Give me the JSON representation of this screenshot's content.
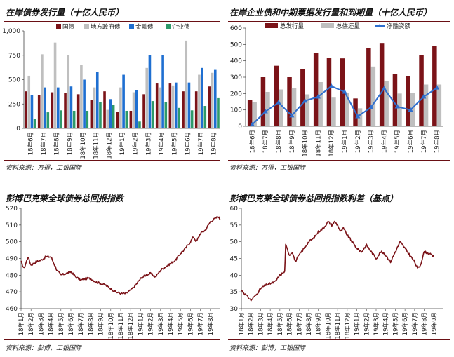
{
  "colors": {
    "dark_red": "#7b1318",
    "gray": "#bfbfbf",
    "blue": "#1f6fd1",
    "green": "#2e9a6a",
    "line_blue": "#2f6fcf",
    "title_rule": "#6a0f14"
  },
  "panels": {
    "tl": {
      "title": "在岸债券发行量（十亿人民币）",
      "source": "资料来源：万得，工银国际"
    },
    "tr": {
      "title": "在岸企业债和中期票据发行量和到期量（十亿人民币）",
      "source": "资料来源：万得，工银国际"
    },
    "bl": {
      "title": "彭博巴克莱全球债券总回报指数",
      "source": "资料来源：彭博，工银国际"
    },
    "br": {
      "title": "彭博巴克莱全球债券总回报指数利差（基点）",
      "source": "资料来源：彭博，工银国际"
    }
  },
  "chart_data": [
    {
      "type": "bar",
      "title": "在岸债券发行量（十亿人民币）",
      "categories": [
        "18年6月",
        "18年7月",
        "18年8月",
        "18年9月",
        "18年10月",
        "18年11月",
        "18年12月",
        "19年1月",
        "19年2月",
        "19年3月",
        "19年4月",
        "19年5月",
        "19年6月",
        "19年7月",
        "19年8月"
      ],
      "series": [
        {
          "name": "国债",
          "color": "#7b1318",
          "values": [
            380,
            340,
            370,
            360,
            350,
            290,
            380,
            170,
            180,
            350,
            460,
            460,
            380,
            380,
            430
          ]
        },
        {
          "name": "地方政府债",
          "color": "#bfbfbf",
          "values": [
            540,
            760,
            880,
            750,
            650,
            420,
            190,
            420,
            370,
            620,
            420,
            440,
            900,
            550,
            570
          ]
        },
        {
          "name": "金融债",
          "color": "#1f6fd1",
          "values": [
            340,
            420,
            420,
            430,
            500,
            580,
            300,
            550,
            390,
            750,
            750,
            470,
            470,
            620,
            600
          ]
        },
        {
          "name": "企业债",
          "color": "#2e9a6a",
          "values": [
            95,
            165,
            185,
            180,
            180,
            270,
            240,
            180,
            70,
            280,
            270,
            210,
            185,
            230,
            310
          ]
        }
      ],
      "ylim": [
        0,
        1000
      ],
      "yticks": [
        "0",
        "250",
        "500",
        "750",
        "1,000"
      ],
      "ytick_values": [
        0,
        250,
        500,
        750,
        1000
      ],
      "xlabel": "",
      "ylabel": "",
      "legend": "top"
    },
    {
      "type": "bar",
      "title": "在岸企业债和中期票据发行量和到期量（十亿人民币）",
      "categories": [
        "18年6月",
        "18年7月",
        "18年8月",
        "18年9月",
        "18年10月",
        "18年11月",
        "18年12月",
        "19年1月",
        "19年2月",
        "19年3月",
        "19年4月",
        "19年5月",
        "19年6月",
        "19年7月",
        "19年8月"
      ],
      "series": [
        {
          "name": "总发行量",
          "kind": "bar",
          "color": "#7b1318",
          "values": [
            160,
            300,
            370,
            300,
            350,
            450,
            420,
            415,
            170,
            480,
            505,
            320,
            305,
            435,
            490
          ]
        },
        {
          "name": "总偿还量",
          "kind": "bar",
          "color": "#bfbfbf",
          "values": [
            150,
            210,
            225,
            235,
            195,
            270,
            175,
            205,
            110,
            365,
            275,
            200,
            205,
            255,
            255
          ]
        },
        {
          "name": "净融资额",
          "kind": "line",
          "color": "#2f6fcf",
          "values": [
            10,
            90,
            145,
            65,
            155,
            180,
            245,
            210,
            60,
            115,
            230,
            120,
            100,
            180,
            235
          ]
        }
      ],
      "ylim": [
        0,
        600
      ],
      "yticks": [
        "0",
        "100",
        "200",
        "300",
        "400",
        "500",
        "600"
      ],
      "ytick_values": [
        0,
        100,
        200,
        300,
        400,
        500,
        600
      ],
      "xlabel": "",
      "ylabel": "",
      "legend": "top"
    },
    {
      "type": "line",
      "title": "彭博巴克莱全球债券总回报指数",
      "x_labels": [
        "18年1月",
        "18年2月",
        "18年3月",
        "18年4月",
        "18年5月",
        "18年6月",
        "18年7月",
        "18年8月",
        "18年9月",
        "18年10月",
        "18年11月",
        "18年12月",
        "19年1月",
        "19年2月",
        "19年3月",
        "19年4月",
        "19年5月",
        "19年6月",
        "19年7月",
        "19年8月"
      ],
      "anchors": [
        [
          0,
          488
        ],
        [
          0.3,
          484
        ],
        [
          0.7,
          491
        ],
        [
          1.0,
          486
        ],
        [
          1.5,
          488
        ],
        [
          2.0,
          489
        ],
        [
          2.5,
          491
        ],
        [
          3.0,
          491
        ],
        [
          3.3,
          487
        ],
        [
          3.6,
          483
        ],
        [
          4.0,
          480
        ],
        [
          4.5,
          481
        ],
        [
          5.0,
          482
        ],
        [
          5.5,
          479
        ],
        [
          6.0,
          477
        ],
        [
          6.5,
          478
        ],
        [
          7.0,
          478
        ],
        [
          7.5,
          476
        ],
        [
          8.0,
          475
        ],
        [
          8.5,
          474
        ],
        [
          9.0,
          472
        ],
        [
          9.5,
          470
        ],
        [
          10.0,
          469
        ],
        [
          10.5,
          469
        ],
        [
          11.0,
          471
        ],
        [
          11.5,
          474
        ],
        [
          12.0,
          478
        ],
        [
          12.5,
          480
        ],
        [
          13.0,
          481
        ],
        [
          13.5,
          479
        ],
        [
          14.0,
          483
        ],
        [
          14.5,
          485
        ],
        [
          15.0,
          487
        ],
        [
          15.5,
          489
        ],
        [
          16.0,
          493
        ],
        [
          16.5,
          496
        ],
        [
          17.0,
          500
        ],
        [
          17.3,
          503
        ],
        [
          17.6,
          500
        ],
        [
          18.0,
          505
        ],
        [
          18.5,
          507
        ],
        [
          19.0,
          512
        ],
        [
          19.5,
          514
        ],
        [
          19.8,
          515
        ],
        [
          20.0,
          513
        ]
      ],
      "ylim": [
        460,
        520
      ],
      "yticks": [
        "460",
        "470",
        "480",
        "490",
        "500",
        "510",
        "520"
      ],
      "ytick_values": [
        460,
        470,
        480,
        490,
        500,
        510,
        520
      ],
      "xlabel": "",
      "ylabel": "",
      "legend": "none"
    },
    {
      "type": "line",
      "title": "彭博巴克莱全球债券总回报指数利差（基点）",
      "x_labels": [
        "18年1月",
        "18年2月",
        "18年3月",
        "18年4月",
        "18年5月",
        "18年6月",
        "18年7月",
        "18年8月",
        "18年9月",
        "18年10月",
        "18年11月",
        "18年12月",
        "19年1月",
        "19年2月",
        "19年3月",
        "19年4月",
        "19年5月",
        "19年6月",
        "19年7月",
        "19年8月",
        "19年9月"
      ],
      "anchors": [
        [
          0,
          35.5
        ],
        [
          0.5,
          34
        ],
        [
          1.0,
          32.5
        ],
        [
          1.5,
          34
        ],
        [
          2.0,
          36
        ],
        [
          2.5,
          37
        ],
        [
          3.0,
          37.5
        ],
        [
          3.5,
          38
        ],
        [
          4.0,
          40
        ],
        [
          4.5,
          41
        ],
        [
          4.6,
          49
        ],
        [
          5.0,
          46
        ],
        [
          5.3,
          47
        ],
        [
          5.6,
          44
        ],
        [
          6.0,
          46
        ],
        [
          6.5,
          48
        ],
        [
          7.0,
          50
        ],
        [
          7.5,
          51
        ],
        [
          8.0,
          53
        ],
        [
          8.5,
          54
        ],
        [
          9.0,
          56
        ],
        [
          9.4,
          55
        ],
        [
          9.7,
          56
        ],
        [
          10.0,
          55
        ],
        [
          10.3,
          53
        ],
        [
          10.6,
          54
        ],
        [
          11.0,
          52
        ],
        [
          11.5,
          50
        ],
        [
          12.0,
          48
        ],
        [
          12.5,
          47
        ],
        [
          13.0,
          49
        ],
        [
          13.5,
          47
        ],
        [
          14.0,
          45
        ],
        [
          14.5,
          47
        ],
        [
          15.0,
          46
        ],
        [
          15.5,
          44
        ],
        [
          16.0,
          47
        ],
        [
          16.5,
          50
        ],
        [
          17.0,
          48
        ],
        [
          17.5,
          46
        ],
        [
          18.0,
          44
        ],
        [
          18.3,
          42
        ],
        [
          18.6,
          43
        ],
        [
          19.0,
          47
        ],
        [
          19.5,
          46.5
        ],
        [
          20.0,
          45.5
        ]
      ],
      "ylim": [
        30,
        60
      ],
      "yticks": [
        "30",
        "35",
        "40",
        "45",
        "50",
        "55",
        "60"
      ],
      "ytick_values": [
        30,
        35,
        40,
        45,
        50,
        55,
        60
      ],
      "xlabel": "",
      "ylabel": "",
      "legend": "none"
    }
  ]
}
